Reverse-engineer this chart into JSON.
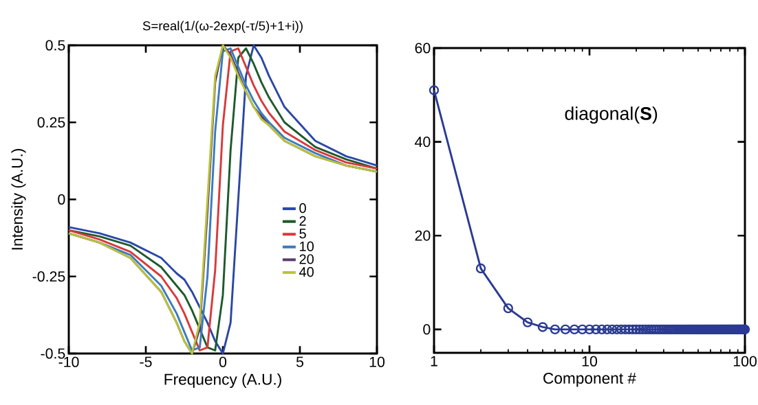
{
  "chart_data": [
    {
      "type": "line",
      "title": "S=real(1/(ω-2exp(-τ/5)+1+i))",
      "xlabel": "Frequency (A.U.)",
      "ylabel": "Intensity (A.U.)",
      "x": [
        -10,
        -8,
        -6,
        -4,
        -3,
        -2.5,
        -2,
        -1.5,
        -1,
        -0.5,
        0,
        0.5,
        1,
        1.5,
        2,
        2.5,
        3,
        4,
        6,
        8,
        10
      ],
      "series": [
        {
          "name": "0",
          "color": "#2a47a8",
          "values": [
            -0.09,
            -0.11,
            -0.14,
            -0.19,
            -0.24,
            -0.26,
            -0.3,
            -0.35,
            -0.4,
            -0.46,
            -0.5,
            -0.4,
            0,
            0.4,
            0.5,
            0.46,
            0.4,
            0.3,
            0.19,
            0.14,
            0.11
          ]
        },
        {
          "name": "2",
          "color": "#1e5a2c",
          "values": [
            -0.1,
            -0.12,
            -0.15,
            -0.22,
            -0.28,
            -0.31,
            -0.36,
            -0.42,
            -0.48,
            -0.49,
            -0.31,
            0.16,
            0.46,
            0.49,
            0.44,
            0.38,
            0.33,
            0.25,
            0.17,
            0.13,
            0.1
          ]
        },
        {
          "name": "5",
          "color": "#d9393a",
          "values": [
            -0.1,
            -0.13,
            -0.17,
            -0.25,
            -0.32,
            -0.37,
            -0.43,
            -0.49,
            -0.48,
            -0.23,
            0.24,
            0.48,
            0.49,
            0.43,
            0.37,
            0.32,
            0.28,
            0.22,
            0.16,
            0.12,
            0.1
          ]
        },
        {
          "name": "10",
          "color": "#3a7bbf",
          "values": [
            -0.11,
            -0.14,
            -0.18,
            -0.28,
            -0.37,
            -0.43,
            -0.49,
            -0.48,
            -0.25,
            0.22,
            0.48,
            0.49,
            0.43,
            0.37,
            0.32,
            0.28,
            0.25,
            0.2,
            0.15,
            0.11,
            0.09
          ]
        },
        {
          "name": "20",
          "color": "#5a3a6e",
          "values": [
            -0.11,
            -0.14,
            -0.19,
            -0.3,
            -0.4,
            -0.46,
            -0.5,
            -0.42,
            -0.04,
            0.38,
            0.5,
            0.47,
            0.41,
            0.35,
            0.3,
            0.27,
            0.24,
            0.19,
            0.14,
            0.11,
            0.09
          ]
        },
        {
          "name": "40",
          "color": "#b9c43a",
          "values": [
            -0.11,
            -0.14,
            -0.19,
            -0.3,
            -0.4,
            -0.46,
            -0.5,
            -0.4,
            0,
            0.4,
            0.5,
            0.46,
            0.4,
            0.35,
            0.3,
            0.26,
            0.24,
            0.19,
            0.14,
            0.11,
            0.09
          ]
        }
      ],
      "xlim": [
        -10,
        10
      ],
      "ylim": [
        -0.5,
        0.5
      ],
      "xticks": [
        -10,
        -5,
        0,
        5,
        10
      ],
      "yticks": [
        -0.5,
        -0.25,
        0,
        0.25,
        0.5
      ],
      "legend": "right",
      "marker": "none",
      "line_style": "solid",
      "grid": false
    },
    {
      "type": "line",
      "xlabel": "Component #",
      "annotations": [
        "diagonal(**S**)"
      ],
      "log": "x",
      "x": [
        1,
        2,
        3,
        4,
        5,
        6,
        7,
        8,
        9,
        10,
        11,
        12,
        13,
        14,
        15,
        16,
        17,
        18,
        19,
        20,
        21,
        22,
        23,
        24,
        25,
        26,
        27,
        28,
        29,
        30,
        31,
        32,
        33,
        34,
        35,
        36,
        37,
        38,
        39,
        40,
        41,
        42,
        43,
        44,
        45,
        46,
        47,
        48,
        49,
        50,
        51,
        52,
        53,
        54,
        55,
        56,
        57,
        58,
        59,
        60,
        61,
        62,
        63,
        64,
        65,
        66,
        67,
        68,
        69,
        70,
        71,
        72,
        73,
        74,
        75,
        76,
        77,
        78,
        79,
        80,
        81,
        82,
        83,
        84,
        85,
        86,
        87,
        88,
        89,
        90,
        91,
        92,
        93,
        94,
        95,
        96,
        97,
        98,
        99,
        100
      ],
      "series": [
        {
          "color": "#2b3a94",
          "values": [
            51,
            13,
            4.5,
            1.5,
            0.5,
            0,
            0,
            0,
            0,
            0,
            0,
            0,
            0,
            0,
            0,
            0,
            0,
            0,
            0,
            0,
            0,
            0,
            0,
            0,
            0,
            0,
            0,
            0,
            0,
            0,
            0,
            0,
            0,
            0,
            0,
            0,
            0,
            0,
            0,
            0,
            0,
            0,
            0,
            0,
            0,
            0,
            0,
            0,
            0,
            0,
            0,
            0,
            0,
            0,
            0,
            0,
            0,
            0,
            0,
            0,
            0,
            0,
            0,
            0,
            0,
            0,
            0,
            0,
            0,
            0,
            0,
            0,
            0,
            0,
            0,
            0,
            0,
            0,
            0,
            0,
            0,
            0,
            0,
            0,
            0,
            0,
            0,
            0,
            0,
            0,
            0,
            0,
            0,
            0,
            0,
            0,
            0,
            0,
            0,
            0
          ]
        }
      ],
      "xlim": [
        1,
        100
      ],
      "ylim": [
        -5,
        60
      ],
      "xticks": [
        1,
        10,
        100
      ],
      "yticks": [
        0,
        20,
        40,
        60
      ],
      "marker": "circle",
      "line_style": "solid",
      "grid": false
    }
  ]
}
